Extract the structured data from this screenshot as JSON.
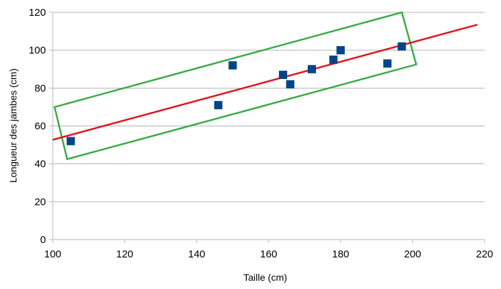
{
  "chart_data": {
    "type": "scatter",
    "xlabel": "Taille (cm)",
    "ylabel": "Longueur des jambes (cm)",
    "xlim": [
      100,
      220
    ],
    "ylim": [
      0,
      120
    ],
    "x_ticks": [
      100,
      120,
      140,
      160,
      180,
      200,
      220
    ],
    "y_ticks": [
      0,
      20,
      40,
      60,
      80,
      100,
      120
    ],
    "grid": "horizontal",
    "legend": "none",
    "series": [
      {
        "marker": "square",
        "color": "#004586",
        "points": [
          {
            "x": 105,
            "y": 52
          },
          {
            "x": 146,
            "y": 71
          },
          {
            "x": 150,
            "y": 92
          },
          {
            "x": 164,
            "y": 87
          },
          {
            "x": 166,
            "y": 82
          },
          {
            "x": 172,
            "y": 90
          },
          {
            "x": 178,
            "y": 95
          },
          {
            "x": 180,
            "y": 100
          },
          {
            "x": 193,
            "y": 93
          },
          {
            "x": 197,
            "y": 102
          }
        ]
      }
    ],
    "trend_line": {
      "color": "#e0141e",
      "points": [
        {
          "x": 100,
          "y": 52.7
        },
        {
          "x": 218,
          "y": 113.5
        }
      ]
    },
    "annotation_box": {
      "shape": "rotated-rectangle",
      "color": "#3aaa45",
      "corners": [
        {
          "x": 100.5,
          "y": 70
        },
        {
          "x": 197,
          "y": 120
        },
        {
          "x": 201,
          "y": 92.5
        },
        {
          "x": 104,
          "y": 42.5
        }
      ]
    }
  }
}
